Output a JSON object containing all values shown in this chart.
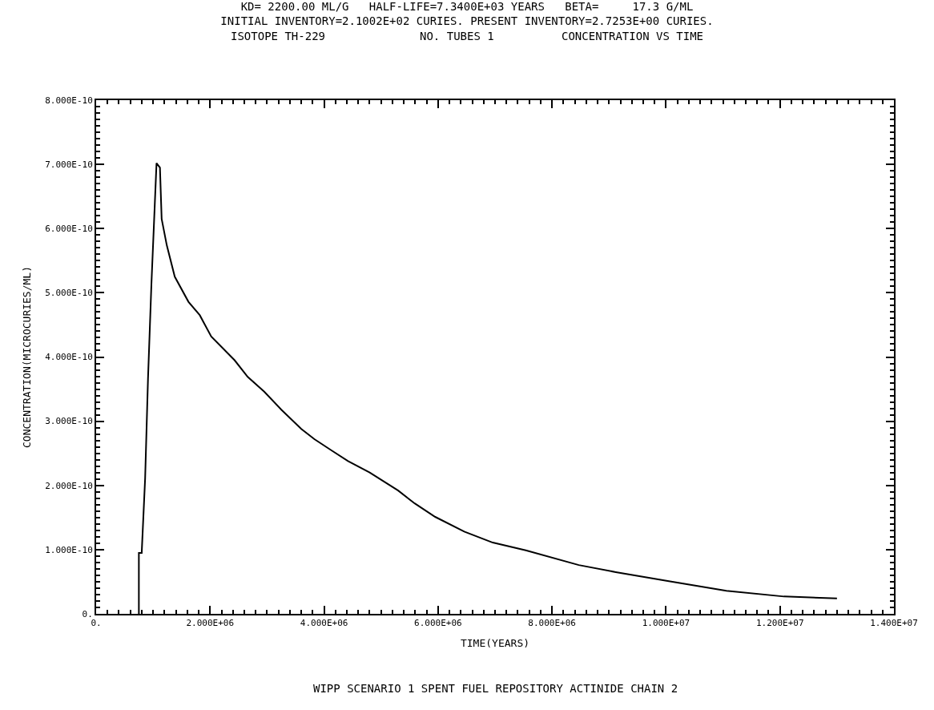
{
  "chart_data": {
    "type": "line",
    "title": "KD= 2200.00 ML/G   HALF-LIFE=7.3400E+03 YEARS   BETA=     17.3 G/ML\nINITIAL INVENTORY=2.1002E+02 CURIES. PRESENT INVENTORY=2.7253E+00 CURIES.\nISOTOPE TH-229              NO. TUBES 1          CONCENTRATION VS TIME",
    "xlabel": "TIME(YEARS)",
    "ylabel": "CONCENTRATION(MICROCURIES/ML)",
    "annotations": [
      "WIPP SCENARIO 1 SPENT FUEL REPOSITORY ACTINIDE CHAIN 2"
    ],
    "series": [
      {
        "color": "#000000",
        "x": [
          750000,
          750000,
          800000,
          860000,
          910000,
          970000,
          1060000,
          1120000,
          1150000,
          1240000,
          1380000,
          1620000,
          1820000,
          2020000,
          2430000,
          2660000,
          2950000,
          3250000,
          3600000,
          3830000,
          4140000,
          4420000,
          4800000,
          5300000,
          5590000,
          5950000,
          6460000,
          6960000,
          7540000,
          8470000,
          9120000,
          10050000,
          11060000,
          12070000,
          13000000
        ],
        "values": [
          0,
          9.5e-11,
          9.5e-11,
          2.11e-10,
          3.65e-10,
          5.13e-10,
          7.02e-10,
          6.95e-10,
          6.15e-10,
          5.74e-10,
          5.25e-10,
          4.86e-10,
          4.65e-10,
          4.32e-10,
          3.95e-10,
          3.69e-10,
          3.46e-10,
          3.18e-10,
          2.88e-10,
          2.72e-10,
          2.54e-10,
          2.38e-10,
          2.2e-10,
          1.92e-10,
          1.72e-10,
          1.51e-10,
          1.28e-10,
          1.11e-10,
          9.9e-11,
          7.6e-11,
          6.5e-11,
          5.1e-11,
          3.6e-11,
          2.7e-11,
          2.4e-11
        ]
      }
    ],
    "xlim": [
      0,
      14000000
    ],
    "xticks": [
      {
        "value": 0,
        "label": "0."
      },
      {
        "value": 2000000,
        "label": "2.000E+06"
      },
      {
        "value": 4000000,
        "label": "4.000E+06"
      },
      {
        "value": 6000000,
        "label": "6.000E+06"
      },
      {
        "value": 8000000,
        "label": "8.000E+06"
      },
      {
        "value": 10000000,
        "label": "1.000E+07"
      },
      {
        "value": 12000000,
        "label": "1.200E+07"
      },
      {
        "value": 14000000,
        "label": "1.400E+07"
      }
    ],
    "ylim": [
      0,
      8e-10
    ],
    "yticks": [
      {
        "value": 0,
        "label": "0."
      },
      {
        "value": 1e-10,
        "label": "1.000E-10"
      },
      {
        "value": 2e-10,
        "label": "2.000E-10"
      },
      {
        "value": 3e-10,
        "label": "3.000E-10"
      },
      {
        "value": 4e-10,
        "label": "4.000E-10"
      },
      {
        "value": 5e-10,
        "label": "5.000E-10"
      },
      {
        "value": 6e-10,
        "label": "6.000E-10"
      },
      {
        "value": 7e-10,
        "label": "7.000E-10"
      },
      {
        "value": 8e-10,
        "label": "8.000E-10"
      }
    ],
    "marker": "none",
    "line_style": "solid"
  }
}
